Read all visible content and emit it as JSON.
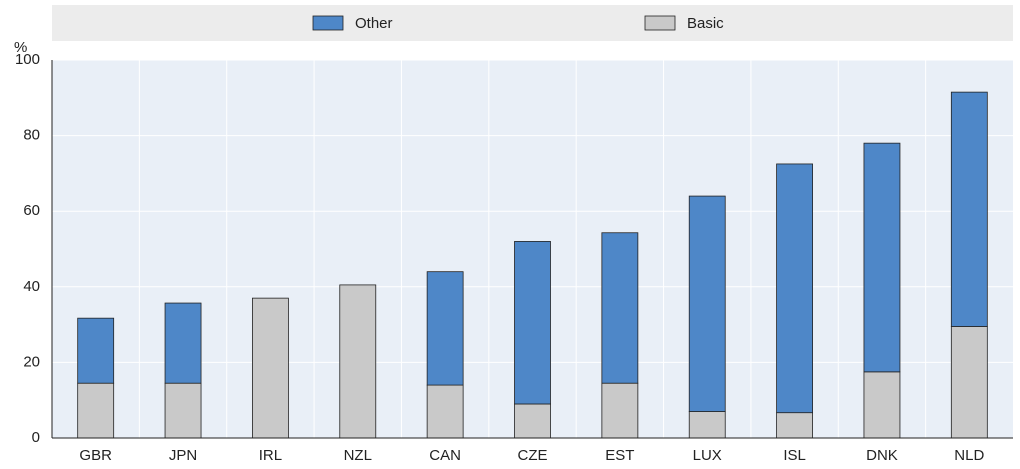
{
  "chart_data": {
    "type": "stacked_bar",
    "y_unit": "%",
    "categories": [
      "GBR",
      "JPN",
      "IRL",
      "NZL",
      "CAN",
      "CZE",
      "EST",
      "LUX",
      "ISL",
      "DNK",
      "NLD"
    ],
    "series": [
      {
        "name": "Other",
        "color": "#4e87c8",
        "values": [
          17.2,
          21.2,
          0,
          0,
          30,
          43,
          39.8,
          57,
          65.8,
          60.5,
          62
        ]
      },
      {
        "name": "Basic",
        "color": "#c9c9c9",
        "values": [
          14.5,
          14.5,
          37,
          40.5,
          14,
          9,
          14.5,
          7,
          6.7,
          17.5,
          29.5
        ]
      }
    ],
    "ylim": [
      0,
      100
    ],
    "yticks": [
      0,
      20,
      40,
      60,
      80,
      100
    ],
    "grid": true
  }
}
